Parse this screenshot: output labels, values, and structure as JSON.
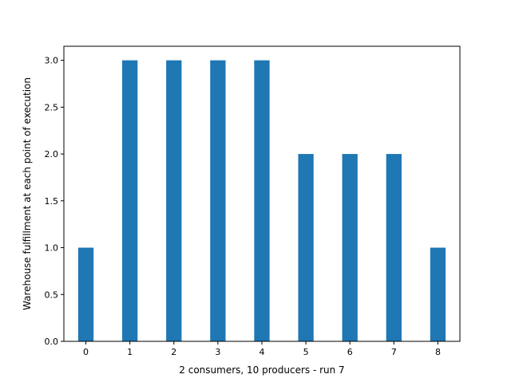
{
  "chart_data": {
    "type": "bar",
    "categories": [
      "0",
      "1",
      "2",
      "3",
      "4",
      "5",
      "6",
      "7",
      "8"
    ],
    "x": [
      0,
      1,
      2,
      3,
      4,
      5,
      6,
      7,
      8
    ],
    "values": [
      1,
      3,
      3,
      3,
      3,
      2,
      2,
      2,
      1
    ],
    "title": "",
    "xlabel": "2 consumers, 10 producers - run 7",
    "ylabel": "Warehouse fulfillment at each point of execution",
    "xlim": [
      -0.5,
      8.5
    ],
    "ylim": [
      0,
      3.15
    ],
    "xticks": [
      "0",
      "1",
      "2",
      "3",
      "4",
      "5",
      "6",
      "7",
      "8"
    ],
    "yticks": [
      "0.0",
      "0.5",
      "1.0",
      "1.5",
      "2.0",
      "2.5",
      "3.0"
    ],
    "grid": false,
    "bar_color": "#1f77b4"
  }
}
